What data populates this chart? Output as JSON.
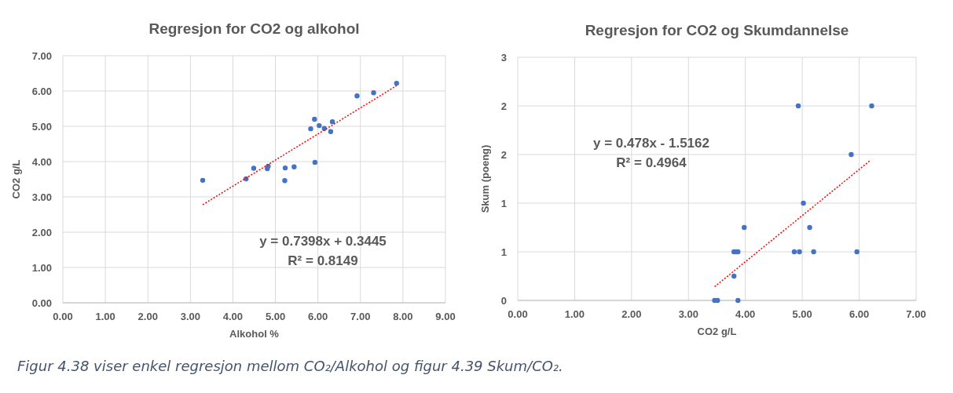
{
  "chart_data": [
    {
      "type": "scatter",
      "title": "Regresjon for CO2 og alkohol",
      "xlabel": "Alkohol %",
      "ylabel": "CO2 g/L",
      "grid": true,
      "marker": "circle",
      "xlim": [
        0,
        9
      ],
      "xticks": [
        {
          "value": 0,
          "label": "0.00"
        },
        {
          "value": 1,
          "label": "1.00"
        },
        {
          "value": 2,
          "label": "2.00"
        },
        {
          "value": 3,
          "label": "3.00"
        },
        {
          "value": 4,
          "label": "4.00"
        },
        {
          "value": 5,
          "label": "5.00"
        },
        {
          "value": 6,
          "label": "6.00"
        },
        {
          "value": 7,
          "label": "7.00"
        },
        {
          "value": 8,
          "label": "8.00"
        },
        {
          "value": 9,
          "label": "9.00"
        }
      ],
      "ylim": [
        0,
        7
      ],
      "yticks": [
        {
          "value": 0,
          "label": "0.00"
        },
        {
          "value": 1,
          "label": "1.00"
        },
        {
          "value": 2,
          "label": "2.00"
        },
        {
          "value": 3,
          "label": "3.00"
        },
        {
          "value": 4,
          "label": "4.00"
        },
        {
          "value": 5,
          "label": "5.00"
        },
        {
          "value": 6,
          "label": "6.00"
        },
        {
          "value": 7,
          "label": "7.00"
        }
      ],
      "series": [
        {
          "color": "#4472c4",
          "x": [
            3.29,
            4.31,
            4.49,
            4.81,
            4.83,
            5.22,
            5.23,
            5.44,
            5.83,
            5.92,
            5.93,
            6.03,
            6.15,
            6.3,
            6.34,
            6.92,
            7.31,
            7.85
          ],
          "values": [
            3.47,
            3.51,
            3.81,
            3.8,
            3.87,
            3.46,
            3.82,
            3.85,
            4.93,
            5.2,
            3.98,
            5.02,
            4.94,
            4.85,
            5.13,
            5.86,
            5.95,
            6.22
          ]
        },
        {
          "type": "line",
          "color": "#ff0000",
          "line_style": "dotted",
          "marker": "none",
          "x": [
            3.29,
            7.85
          ],
          "values": [
            2.78,
            6.15
          ]
        }
      ],
      "annotations": [
        "y = 0.7398x + 0.3445",
        "R² = 0.8149"
      ]
    },
    {
      "type": "scatter",
      "title": "Regresjon for CO2 og Skumdannelse",
      "xlabel": "CO2 g/L",
      "ylabel": "Skum (poeng)",
      "grid": true,
      "marker": "circle",
      "xlim": [
        0,
        7
      ],
      "xticks": [
        {
          "value": 0,
          "label": "0.00"
        },
        {
          "value": 1,
          "label": "1.00"
        },
        {
          "value": 2,
          "label": "2.00"
        },
        {
          "value": 3,
          "label": "3.00"
        },
        {
          "value": 4,
          "label": "4.00"
        },
        {
          "value": 5,
          "label": "5.00"
        },
        {
          "value": 6,
          "label": "6.00"
        },
        {
          "value": 7,
          "label": "7.00"
        }
      ],
      "ylim": [
        0,
        3
      ],
      "yticks": [
        0,
        {
          "value": 0.6,
          "label": "1"
        },
        {
          "value": 1.2,
          "label": "1"
        },
        {
          "value": 1.8,
          "label": "2"
        },
        {
          "value": 2.4,
          "label": "2"
        },
        3
      ],
      "series": [
        {
          "color": "#4472c4",
          "x": [
            3.46,
            3.51,
            3.87,
            3.8,
            3.8,
            3.84,
            3.87,
            3.98,
            4.86,
            4.95,
            5.2,
            5.96,
            5.13,
            5.02,
            5.86,
            4.93,
            6.22
          ],
          "values": [
            0,
            0,
            0,
            0.3,
            0.6,
            0.6,
            0.6,
            0.9,
            0.6,
            0.6,
            0.6,
            0.6,
            0.9,
            1.2,
            1.8,
            2.4,
            2.4
          ]
        },
        {
          "type": "line",
          "color": "#ff0000",
          "line_style": "dotted",
          "marker": "none",
          "x": [
            3.46,
            6.2
          ],
          "values": [
            0.17,
            1.73
          ]
        }
      ],
      "annotations": [
        "y = 0.478x - 1.5162",
        "R² = 0.4964",
        "Figur 4.38 viser enkel regresjon mellom CO₂/Alkohol og figur 4.39 Skum/CO₂."
      ]
    }
  ]
}
